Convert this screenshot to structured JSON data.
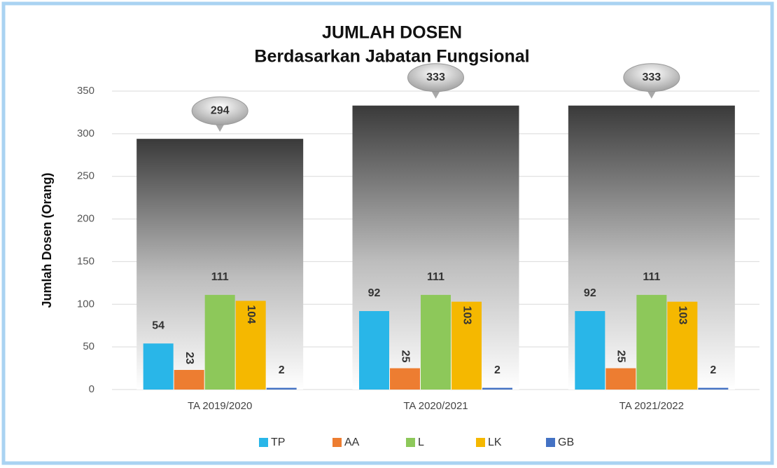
{
  "chart_data": {
    "type": "bar",
    "title": "JUMLAH DOSEN",
    "subtitle": "Berdasarkan Jabatan Fungsional",
    "y_label": "Jumlah Dosen  (Orang)",
    "categories": [
      "TA 2019/2020",
      "TA 2020/2021",
      "TA 2021/2022"
    ],
    "totals": {
      "color": "#3a3a3a",
      "values": [
        294,
        333,
        333
      ]
    },
    "series": [
      {
        "name": "TP",
        "color": "#29b6e8",
        "values": [
          54,
          92,
          92
        ]
      },
      {
        "name": "AA",
        "color": "#ed7d31",
        "values": [
          23,
          25,
          25
        ]
      },
      {
        "name": "L",
        "color": "#8dc85a",
        "values": [
          111,
          111,
          111
        ]
      },
      {
        "name": "LK",
        "color": "#f5b800",
        "values": [
          104,
          103,
          103
        ]
      },
      {
        "name": "GB",
        "color": "#4472c4",
        "values": [
          2,
          2,
          2
        ]
      }
    ],
    "ylim": [
      0,
      350
    ],
    "yticks": [
      0,
      50,
      100,
      150,
      200,
      250,
      300,
      350
    ],
    "grid": true,
    "legend": "bottom"
  }
}
